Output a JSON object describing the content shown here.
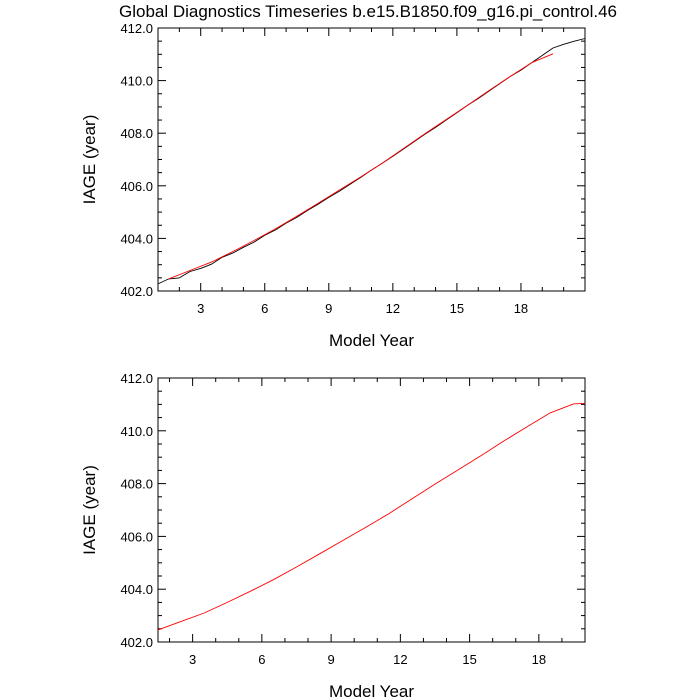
{
  "title": "Global Diagnostics Timeseries b.e15.B1850.f09_g16.pi_control.46",
  "colors": {
    "monthly": "#000000",
    "annual": "#ff0000",
    "axis": "#000000"
  },
  "chart_data": [
    {
      "type": "line",
      "xlabel": "Model Year",
      "ylabel": "IAGE (year)",
      "xlim": [
        1.0,
        21.0
      ],
      "ylim": [
        402.0,
        412.0
      ],
      "x_ticks": [
        3,
        6,
        9,
        12,
        15,
        18
      ],
      "x_tick_labels": [
        "3",
        "6",
        "9",
        "12",
        "15",
        "18"
      ],
      "y_ticks": [
        402,
        404,
        406,
        408,
        410,
        412
      ],
      "y_tick_labels": [
        "402.0",
        "404.0",
        "406.0",
        "408.0",
        "410.0",
        "412.0"
      ],
      "grid": false,
      "series": [
        {
          "color_key": "monthly",
          "x": [
            1.0,
            1.5,
            2.0,
            2.5,
            3.0,
            3.5,
            4.0,
            4.5,
            5.0,
            5.5,
            6.0,
            6.5,
            7.0,
            7.5,
            8.0,
            8.5,
            9.0,
            9.5,
            10.0,
            10.5,
            11.0,
            11.5,
            12.0,
            12.5,
            13.0,
            13.5,
            14.0,
            14.5,
            15.0,
            15.5,
            16.0,
            16.5,
            17.0,
            17.5,
            18.0,
            18.5,
            19.0,
            19.5,
            20.0,
            20.5,
            21.0
          ],
          "y": [
            402.27,
            402.46,
            402.5,
            402.74,
            402.86,
            403.02,
            403.28,
            403.44,
            403.66,
            403.86,
            404.12,
            404.32,
            404.58,
            404.8,
            405.06,
            405.3,
            405.56,
            405.8,
            406.06,
            406.32,
            406.6,
            406.86,
            407.12,
            407.4,
            407.68,
            407.96,
            408.22,
            408.5,
            408.78,
            409.06,
            409.32,
            409.6,
            409.88,
            410.16,
            410.4,
            410.68,
            410.96,
            411.24,
            411.38,
            411.5,
            411.6
          ]
        },
        {
          "color_key": "annual",
          "x": [
            1.5,
            2.5,
            3.5,
            4.5,
            5.5,
            6.5,
            7.5,
            8.5,
            9.5,
            10.5,
            11.5,
            12.5,
            13.5,
            14.5,
            15.5,
            16.5,
            17.5,
            18.5,
            19.5
          ],
          "y": [
            402.46,
            402.78,
            403.1,
            403.5,
            403.92,
            404.36,
            404.84,
            405.34,
            405.84,
            406.34,
            406.86,
            407.42,
            407.98,
            408.52,
            409.06,
            409.62,
            410.16,
            410.68,
            411.02
          ]
        }
      ]
    },
    {
      "type": "line",
      "xlabel": "Model Year",
      "ylabel": "IAGE (year)",
      "xlim": [
        1.5,
        20.0
      ],
      "ylim": [
        402.0,
        412.0
      ],
      "x_ticks": [
        3,
        6,
        9,
        12,
        15,
        18
      ],
      "x_tick_labels": [
        "3",
        "6",
        "9",
        "12",
        "15",
        "18"
      ],
      "y_ticks": [
        402,
        404,
        406,
        408,
        410,
        412
      ],
      "y_tick_labels": [
        "402.0",
        "404.0",
        "406.0",
        "408.0",
        "410.0",
        "412.0"
      ],
      "grid": false,
      "series": [
        {
          "color_key": "annual",
          "x": [
            1.5,
            2.5,
            3.5,
            4.5,
            5.5,
            6.5,
            7.5,
            8.5,
            9.5,
            10.5,
            11.5,
            12.5,
            13.5,
            14.5,
            15.5,
            16.5,
            17.5,
            18.5,
            19.5,
            20.0
          ],
          "y": [
            402.46,
            402.78,
            403.1,
            403.5,
            403.92,
            404.36,
            404.84,
            405.34,
            405.84,
            406.34,
            406.86,
            407.42,
            407.98,
            408.52,
            409.06,
            409.62,
            410.16,
            410.68,
            411.02,
            411.04
          ]
        }
      ]
    }
  ]
}
